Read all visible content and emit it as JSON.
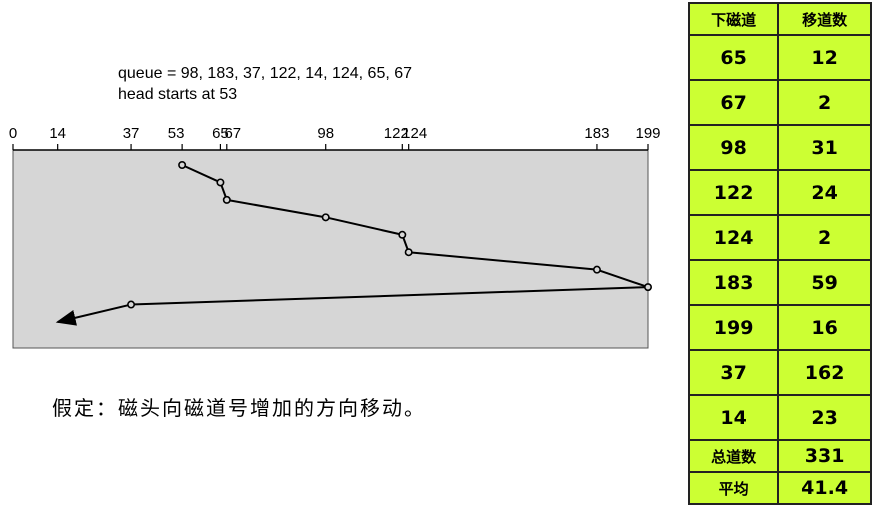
{
  "queue_label": "queue = 98, 183, 37, 122, 14, 124, 65, 67",
  "head_label": "head starts at 53",
  "axis_ticks": [
    {
      "label": "0",
      "value": 0
    },
    {
      "label": "14",
      "value": 14
    },
    {
      "label": "37",
      "value": 37
    },
    {
      "label": "53",
      "value": 53
    },
    {
      "label": "65",
      "value": 65
    },
    {
      "label": "67",
      "value": 67
    },
    {
      "label": "98",
      "value": 98
    },
    {
      "label": "122",
      "value": 122
    },
    {
      "label": "124",
      "value": 124
    },
    {
      "label": "183",
      "value": 183
    },
    {
      "label": "199",
      "value": 199
    }
  ],
  "head_path": [
    53,
    65,
    67,
    98,
    122,
    124,
    183,
    199,
    37,
    14
  ],
  "assumption_text": "假定：磁头向磁道号增加的方向移动。",
  "table": {
    "headers": [
      "下磁道",
      "移道数"
    ],
    "rows": [
      {
        "track": "65",
        "moves": "12"
      },
      {
        "track": "67",
        "moves": "2"
      },
      {
        "track": "98",
        "moves": "31"
      },
      {
        "track": "122",
        "moves": "24"
      },
      {
        "track": "124",
        "moves": "2"
      },
      {
        "track": "183",
        "moves": "59"
      },
      {
        "track": "199",
        "moves": "16"
      },
      {
        "track": "37",
        "moves": "162"
      },
      {
        "track": "14",
        "moves": "23"
      }
    ],
    "total_label": "总道数",
    "total_value": "331",
    "avg_label": "平均",
    "avg_value": "41.4"
  },
  "colors": {
    "panel_fill": "#d6d6d6",
    "table_fill": "#ccff33",
    "line": "#000000"
  }
}
